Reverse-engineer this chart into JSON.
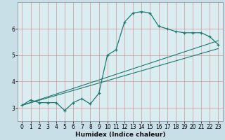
{
  "xlabel": "Humidex (Indice chaleur)",
  "ylabel": "",
  "bg_color": "#cce8d0",
  "grid_color_major": "#e88080",
  "grid_color_minor": "#f0c0c0",
  "plot_bg": "#e8f4f0",
  "line_color": "#1a7a6e",
  "xlim": [
    -0.5,
    23.5
  ],
  "ylim": [
    2.5,
    7.0
  ],
  "yticks": [
    3,
    4,
    5,
    6
  ],
  "xticks": [
    0,
    1,
    2,
    3,
    4,
    5,
    6,
    7,
    8,
    9,
    10,
    11,
    12,
    13,
    14,
    15,
    16,
    17,
    18,
    19,
    20,
    21,
    22,
    23
  ],
  "main_line_x": [
    0,
    1,
    2,
    3,
    4,
    5,
    6,
    7,
    8,
    9,
    10,
    11,
    12,
    13,
    14,
    15,
    16,
    17,
    18,
    19,
    20,
    21,
    22,
    23
  ],
  "main_line_y": [
    3.1,
    3.3,
    3.2,
    3.2,
    3.2,
    2.9,
    3.2,
    3.35,
    3.15,
    3.55,
    5.0,
    5.2,
    6.25,
    6.6,
    6.65,
    6.6,
    6.1,
    6.0,
    5.9,
    5.85,
    5.85,
    5.85,
    5.7,
    5.4
  ],
  "line1_x": [
    0,
    23
  ],
  "line1_y": [
    3.1,
    5.25
  ],
  "line2_x": [
    0,
    23
  ],
  "line2_y": [
    3.1,
    5.55
  ],
  "xlabel_fontsize": 6.5,
  "tick_fontsize": 5.5
}
